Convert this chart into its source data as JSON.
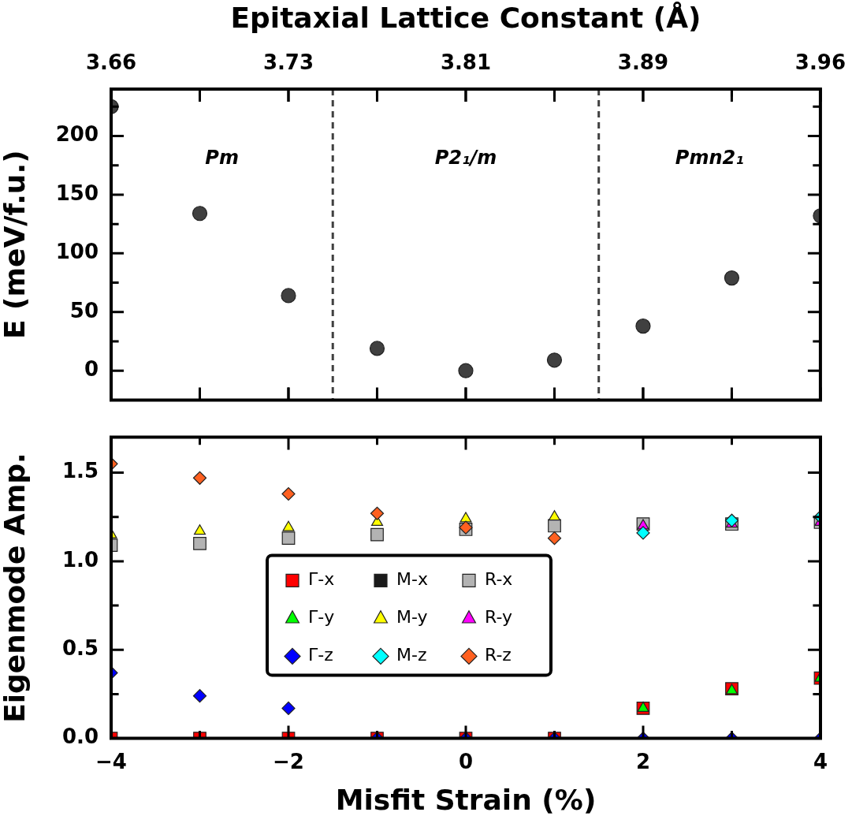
{
  "chart_data": [
    {
      "type": "scatter",
      "x2label": "Epitaxial Lattice Constant (Å)",
      "ylabel": "E (meV/f.u.)",
      "x": [
        -4,
        -3,
        -2,
        -1,
        0,
        1,
        2,
        3,
        4
      ],
      "series": [
        {
          "color": "#404040",
          "values": [
            225,
            134,
            64,
            19,
            0,
            9,
            38,
            79,
            132
          ]
        }
      ],
      "marker": "circle",
      "xlim": [
        -4,
        4
      ],
      "xticks": [
        -4,
        -3,
        -2,
        -1,
        0,
        1,
        2,
        3,
        4
      ],
      "x2lim": [
        3.6576,
        3.9624
      ],
      "x2ticks": [
        {
          "value": 3.6576,
          "label": "3.66"
        },
        {
          "value": 3.6957,
          "label": null
        },
        {
          "value": 3.7338,
          "label": "3.73"
        },
        {
          "value": 3.7719,
          "label": null
        },
        {
          "value": 3.81,
          "label": "3.81"
        },
        {
          "value": 3.8481,
          "label": null
        },
        {
          "value": 3.8862,
          "label": "3.89"
        },
        {
          "value": 3.9243,
          "label": null
        },
        {
          "value": 3.9624,
          "label": "3.96"
        }
      ],
      "ylim": [
        -25,
        240
      ],
      "yticks": [
        0,
        {
          "value": 25,
          "label": null
        },
        50,
        {
          "value": 75,
          "label": null
        },
        100,
        {
          "value": 125,
          "label": null
        },
        150,
        {
          "value": 175,
          "label": null
        },
        200,
        {
          "value": 225,
          "label": null
        }
      ],
      "tick_labels": "y",
      "ref_lines": [
        {
          "axis": "x",
          "value": -1.5,
          "color": "#404040",
          "line_style": "dashed"
        },
        {
          "axis": "x",
          "value": 1.5,
          "color": "#404040",
          "line_style": "dashed"
        }
      ],
      "annotations": [
        "Pm",
        "P2₁/m",
        "Pmn2₁"
      ]
    },
    {
      "type": "scatter",
      "xlabel": "Misfit Strain (%)",
      "ylabel": "Eigenmode Amp.",
      "x": [
        -4,
        -3,
        -2,
        -1,
        0,
        1,
        2,
        3,
        4
      ],
      "series": [
        {
          "name": "Γ-x",
          "color": "#ff0000",
          "marker": "square",
          "values": [
            0,
            0,
            0,
            0,
            0,
            0,
            0.17,
            0.28,
            0.34
          ]
        },
        {
          "name": "Γ-y",
          "color": "#00ff00",
          "marker": "triangle",
          "values": [
            null,
            null,
            null,
            null,
            null,
            null,
            0.17,
            0.27,
            0.34
          ]
        },
        {
          "name": "Γ-z",
          "color": "#0000ff",
          "marker": "diamond",
          "values": [
            0.37,
            0.24,
            0.17,
            0,
            0,
            0,
            0,
            0,
            0
          ]
        },
        {
          "name": "M-x",
          "color": "#1a1a1a",
          "marker": "square",
          "values": [
            null,
            null,
            null,
            null,
            null,
            null,
            null,
            null,
            null
          ]
        },
        {
          "name": "M-y",
          "color": "#ffff00",
          "marker": "triangle",
          "values": [
            1.15,
            1.17,
            1.19,
            1.22,
            1.24,
            1.25,
            null,
            null,
            null
          ]
        },
        {
          "name": "M-z",
          "color": "#00ffff",
          "marker": "diamond",
          "values": [
            null,
            null,
            null,
            null,
            null,
            null,
            1.16,
            1.23,
            1.25
          ]
        },
        {
          "name": "R-x",
          "color": "#b3b3b3",
          "marker": "square",
          "values": [
            1.09,
            1.1,
            1.13,
            1.15,
            1.18,
            1.2,
            1.21,
            1.21,
            1.22
          ]
        },
        {
          "name": "R-y",
          "color": "#ff00ff",
          "marker": "triangle",
          "values": [
            null,
            null,
            null,
            null,
            null,
            null,
            1.2,
            1.21,
            1.22
          ]
        },
        {
          "name": "R-z",
          "color": "#ff6020",
          "marker": "diamond",
          "values": [
            1.55,
            1.47,
            1.38,
            1.27,
            1.19,
            1.13,
            null,
            null,
            null
          ]
        }
      ],
      "xlim": [
        -4,
        4
      ],
      "xticks": [
        {
          "value": -4,
          "label": "−4"
        },
        {
          "value": -3,
          "label": null
        },
        {
          "value": -2,
          "label": "−2"
        },
        {
          "value": -1,
          "label": null
        },
        0,
        {
          "value": 1,
          "label": null
        },
        2,
        {
          "value": 3,
          "label": null
        },
        4
      ],
      "ylim": [
        0,
        1.7
      ],
      "yticks": [
        {
          "value": 0,
          "label": "0.0"
        },
        {
          "value": 0.25,
          "label": null
        },
        {
          "value": 0.5,
          "label": "0.5"
        },
        {
          "value": 0.75,
          "label": null
        },
        {
          "value": 1,
          "label": "1.0"
        },
        {
          "value": 1.25,
          "label": null
        },
        {
          "value": 1.5,
          "label": "1.5"
        }
      ],
      "legend": "bottom"
    }
  ]
}
